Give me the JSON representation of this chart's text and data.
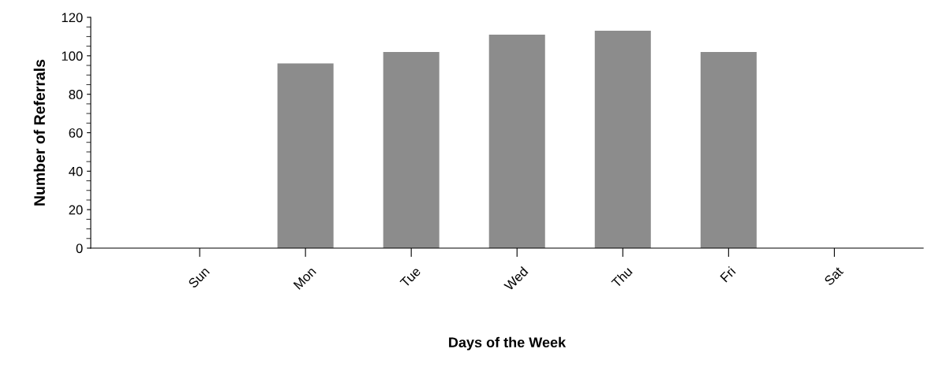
{
  "chart_data": {
    "type": "bar",
    "xlabel": "Days of the Week",
    "ylabel": "Number of Referrals",
    "categories": [
      "Sun",
      "Mon",
      "Tue",
      "Wed",
      "Thu",
      "Fri",
      "Sat"
    ],
    "values": [
      0,
      96,
      102,
      111,
      113,
      102,
      0
    ],
    "color": "#8c8c8c",
    "ylim": [
      0,
      120
    ],
    "yticks": [
      0,
      20,
      40,
      60,
      80,
      100,
      120
    ],
    "grid": false,
    "legend": false
  }
}
